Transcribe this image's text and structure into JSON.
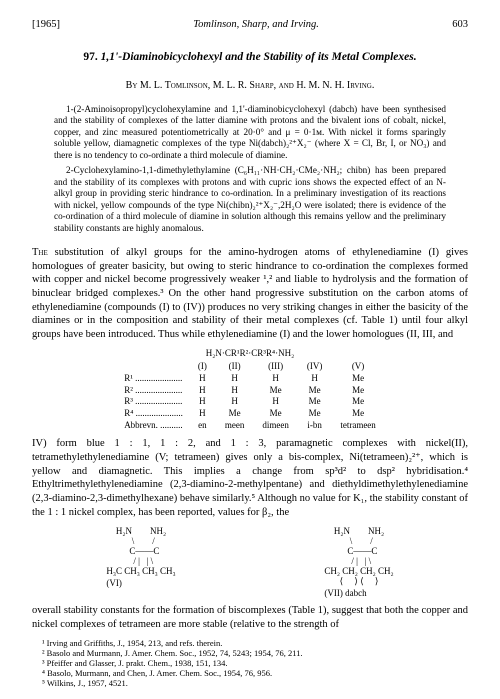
{
  "header": {
    "year": "[1965]",
    "running": "Tomlinson, Sharp, and Irving.",
    "page": "603"
  },
  "title": {
    "number": "97.",
    "text": "1,1'-Diaminobicyclohexyl and the Stability of its Metal Complexes."
  },
  "authors": "By M. L. Tomlinson, M. L. R. Sharp, and H. M. N. H. Irving.",
  "abstract": {
    "p1": "1-(2-Aminoisopropyl)cyclohexylamine and 1,1'-diaminobicyclohexyl (dabch) have been synthesised and the stability of complexes of the latter diamine with protons and the bivalent ions of cobalt, nickel, copper, and zinc measured potentiometrically at 20·0° and μ = 0·1ᴍ. With nickel it forms sparingly soluble yellow, diamagnetic complexes of the type Ni(dabch)₂²⁺X₂⁻ (where X = Cl, Br, I, or NO₃) and there is no tendency to co-ordinate a third molecule of diamine.",
    "p2": "2-Cyclohexylamino-1,1-dimethylethylamine (C₆H₁₁·NH·CH₂·CMe₂·NH₂; chibn) has been prepared and the stability of its complexes with protons and with cupric ions shows the expected effect of an N-alkyl group in providing steric hindrance to co-ordination. In a preliminary investigation of its reactions with nickel, yellow compounds of the type Ni(chibn)₂²⁺X₂⁻,2H₂O were isolated; there is evidence of the co-ordination of a third molecule of diamine in solution although this remains yellow and the preliminary stability constants are highly anomalous."
  },
  "body": {
    "p1_a": "The",
    "p1_b": " substitution of alkyl groups for the amino-hydrogen atoms of ethylenediamine (I) gives homologues of greater basicity, but owing to steric hindrance to co-ordination the complexes formed with copper and nickel become progressively weaker ¹,² and liable to hydrolysis and the formation of binuclear bridged complexes.³ On the other hand progressive substitution on the carbon atoms of ethylenediamine (compounds (I) to (IV)) produces no very striking changes in either the basicity of the diamines or in the composition and stability of their metal complexes (cf. Table 1) until four alkyl groups have been introduced. Thus while ethylenediamine (I) and the lower homologues (II, III, and",
    "p2": "IV) form blue 1 : 1, 1 : 2, and 1 : 3, paramagnetic complexes with nickel(II), tetramethylethylenediamine (V; tetrameen) gives only a bis-complex, Ni(tetrameen)₂²⁺, which is yellow and diamagnetic. This implies a change from sp³d² to dsp² hybridisation.⁴ Ethyltrimethylethylenediamine (2,3-diamino-2-methylpentane) and diethyldimethylethylenediamine (2,3-diamino-2,3-dimethylhexane) behave similarly.⁵ Although no value for K₁, the stability constant of the 1 : 1 nickel complex, has been reported, values for β₂, the",
    "p3": "overall stability constants for the formation of biscomplexes (Table 1), suggest that both the copper and nickel complexes of tetrameen are more stable (relative to the strength of"
  },
  "table": {
    "formula": "H₂N·CR¹R²·CR³R⁴·NH₂",
    "headers": [
      "",
      "(I)",
      "(II)",
      "(III)",
      "(IV)",
      "(V)"
    ],
    "rows": [
      [
        "R¹ .....................",
        "H",
        "H",
        "H",
        "H",
        "Me"
      ],
      [
        "R² .....................",
        "H",
        "H",
        "Me",
        "Me",
        "Me"
      ],
      [
        "R³ .....................",
        "H",
        "H",
        "H",
        "Me",
        "Me"
      ],
      [
        "R⁴ .....................",
        "H",
        "Me",
        "Me",
        "Me",
        "Me"
      ],
      [
        "Abbrevn. ..........",
        "en",
        "meen",
        "dimeen",
        "i-bn",
        "tetrameen"
      ]
    ]
  },
  "structures": {
    "left": {
      "lines": [
        "H₂N        NH₂",
        "  \\        /",
        "   C——C",
        "  / |   | \\",
        "H₃C CH₃ CH₃ CH₃"
      ],
      "label": "(VI)"
    },
    "right": {
      "lines": [
        "H₂N        NH₂",
        "  \\        /",
        "   C——C",
        "  / |   | \\",
        "CH₂ CH₂ CH₂ CH₂",
        "⟨     ⟩ ⟨     ⟩"
      ],
      "label": "(VII) dabch"
    }
  },
  "footnotes": {
    "f1": "¹ Irving and Griffiths, J., 1954, 213, and refs. therein.",
    "f2": "² Basolo and Murmann, J. Amer. Chem. Soc., 1952, 74, 5243; 1954, 76, 211.",
    "f3": "³ Pfeiffer and Glasser, J. prakt. Chem., 1938, 151, 134.",
    "f4": "⁴ Basolo, Murmann, and Chen, J. Amer. Chem. Soc., 1954, 76, 956.",
    "f5": "⁵ Wilkins, J., 1957, 4521."
  }
}
